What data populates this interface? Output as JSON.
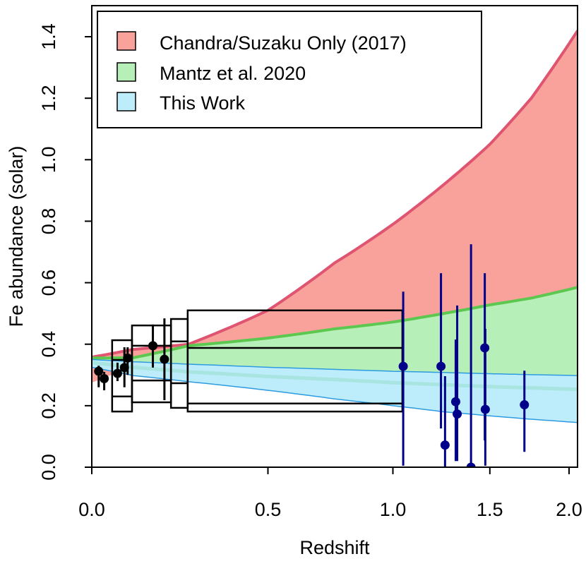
{
  "chart_data": {
    "type": "scatter",
    "xlabel": "Redshift",
    "ylabel": "Fe abundance (solar)",
    "xscale": "log(1+z)",
    "xlim": [
      0,
      2.06
    ],
    "ylim": [
      0,
      1.5
    ],
    "xticks": [
      "0.0",
      "0.5",
      "1.0",
      "1.5",
      "2.0"
    ],
    "xtick_values": [
      0,
      0.5,
      1.0,
      1.5,
      2.0
    ],
    "yticks": [
      "0.0",
      "0.2",
      "0.4",
      "0.6",
      "0.8",
      "1.0",
      "1.2",
      "1.4"
    ],
    "ytick_values": [
      0,
      0.2,
      0.4,
      0.6,
      0.8,
      1.0,
      1.2,
      1.4
    ],
    "grid": false,
    "legend": {
      "placement": "top-left",
      "entries": [
        {
          "label": "Chandra/Suzaku Only (2017)",
          "color": "#F9A19B"
        },
        {
          "label": "Mantz et al. 2020",
          "color": "#B6EFB8"
        },
        {
          "label": "This Work",
          "color": "#BDEDFA"
        }
      ]
    },
    "band_z": [
      0,
      0.1,
      0.25,
      0.5,
      0.75,
      1.0,
      1.25,
      1.5,
      1.75,
      2.06
    ],
    "bands": [
      {
        "label": "Chandra/Suzaku Only (2017)",
        "fill": "#F9A19B",
        "line": "#DF5470",
        "upper": [
          0.358,
          0.383,
          0.4,
          0.51,
          0.665,
          0.79,
          0.92,
          1.05,
          1.2,
          1.42
        ],
        "lower": [
          0.275,
          0.33,
          0.335,
          0.325,
          0.318,
          0.312,
          0.308,
          0.304,
          0.301,
          0.298
        ]
      },
      {
        "label": "Mantz et al. 2020",
        "fill": "#B6EFB8",
        "line": "#5CC84F",
        "upper": [
          0.355,
          0.356,
          0.395,
          0.42,
          0.45,
          0.472,
          0.5,
          0.528,
          0.55,
          0.585
        ],
        "lower": [
          0.35,
          0.343,
          0.335,
          0.325,
          0.318,
          0.312,
          0.308,
          0.304,
          0.301,
          0.298
        ]
      },
      {
        "label": "This Work",
        "fill": "#BDEDFA",
        "line": "#2E9BE0",
        "center_color": "#A8E4E0",
        "upper": [
          0.35,
          0.343,
          0.335,
          0.325,
          0.318,
          0.312,
          0.308,
          0.304,
          0.301,
          0.298
        ],
        "lower": [
          0.325,
          0.298,
          0.278,
          0.25,
          0.222,
          0.2,
          0.18,
          0.167,
          0.156,
          0.145
        ],
        "center": [
          0.34,
          0.325,
          0.31,
          0.295,
          0.285,
          0.275,
          0.268,
          0.262,
          0.258,
          0.253
        ]
      }
    ],
    "bins": [
      {
        "z": [
          0.048,
          0.097
        ],
        "levels": [
          0.181,
          0.23,
          0.349,
          0.413
        ]
      },
      {
        "z": [
          0.097,
          0.2
        ],
        "levels": [
          0.211,
          0.282,
          0.395,
          0.461
        ]
      },
      {
        "z": [
          0.2,
          0.247
        ],
        "levels": [
          0.193,
          0.273,
          0.409,
          0.482
        ]
      },
      {
        "z": [
          0.247,
          1.044
        ],
        "levels": [
          0.181,
          0.207,
          0.388,
          0.51
        ]
      }
    ],
    "series": [
      {
        "color": "#000000",
        "points": [
          {
            "x": 0.016,
            "y": 0.312,
            "lo": 0.26,
            "hi": 0.33
          },
          {
            "x": 0.029,
            "y": 0.288,
            "lo": 0.25,
            "hi": 0.31
          },
          {
            "x": 0.061,
            "y": 0.305,
            "lo": 0.28,
            "hi": 0.34
          },
          {
            "x": 0.078,
            "y": 0.324,
            "lo": 0.26,
            "hi": 0.39
          },
          {
            "x": 0.086,
            "y": 0.355,
            "lo": 0.3,
            "hi": 0.39
          },
          {
            "x": 0.151,
            "y": 0.395,
            "lo": 0.324,
            "hi": 0.464
          },
          {
            "x": 0.182,
            "y": 0.351,
            "lo": 0.218,
            "hi": 0.484
          }
        ]
      },
      {
        "color": "#00008B",
        "points": [
          {
            "x": 1.048,
            "y": 0.328,
            "lo": 0.005,
            "hi": 0.571
          },
          {
            "x": 1.234,
            "y": 0.328,
            "lo": 0.126,
            "hi": 0.631
          },
          {
            "x": 1.255,
            "y": 0.072,
            "lo": 0.0,
            "hi": 0.296
          },
          {
            "x": 1.311,
            "y": 0.213,
            "lo": 0.02,
            "hi": 0.415
          },
          {
            "x": 1.319,
            "y": 0.173,
            "lo": 0.02,
            "hi": 0.526
          },
          {
            "x": 1.394,
            "y": 0.0,
            "lo": 0.005,
            "hi": 0.725
          },
          {
            "x": 1.471,
            "y": 0.388,
            "lo": 0.087,
            "hi": 0.631
          },
          {
            "x": 1.474,
            "y": 0.188,
            "lo": 0.005,
            "hi": 0.45
          },
          {
            "x": 1.707,
            "y": 0.203,
            "lo": 0.05,
            "hi": 0.314
          }
        ]
      }
    ]
  }
}
